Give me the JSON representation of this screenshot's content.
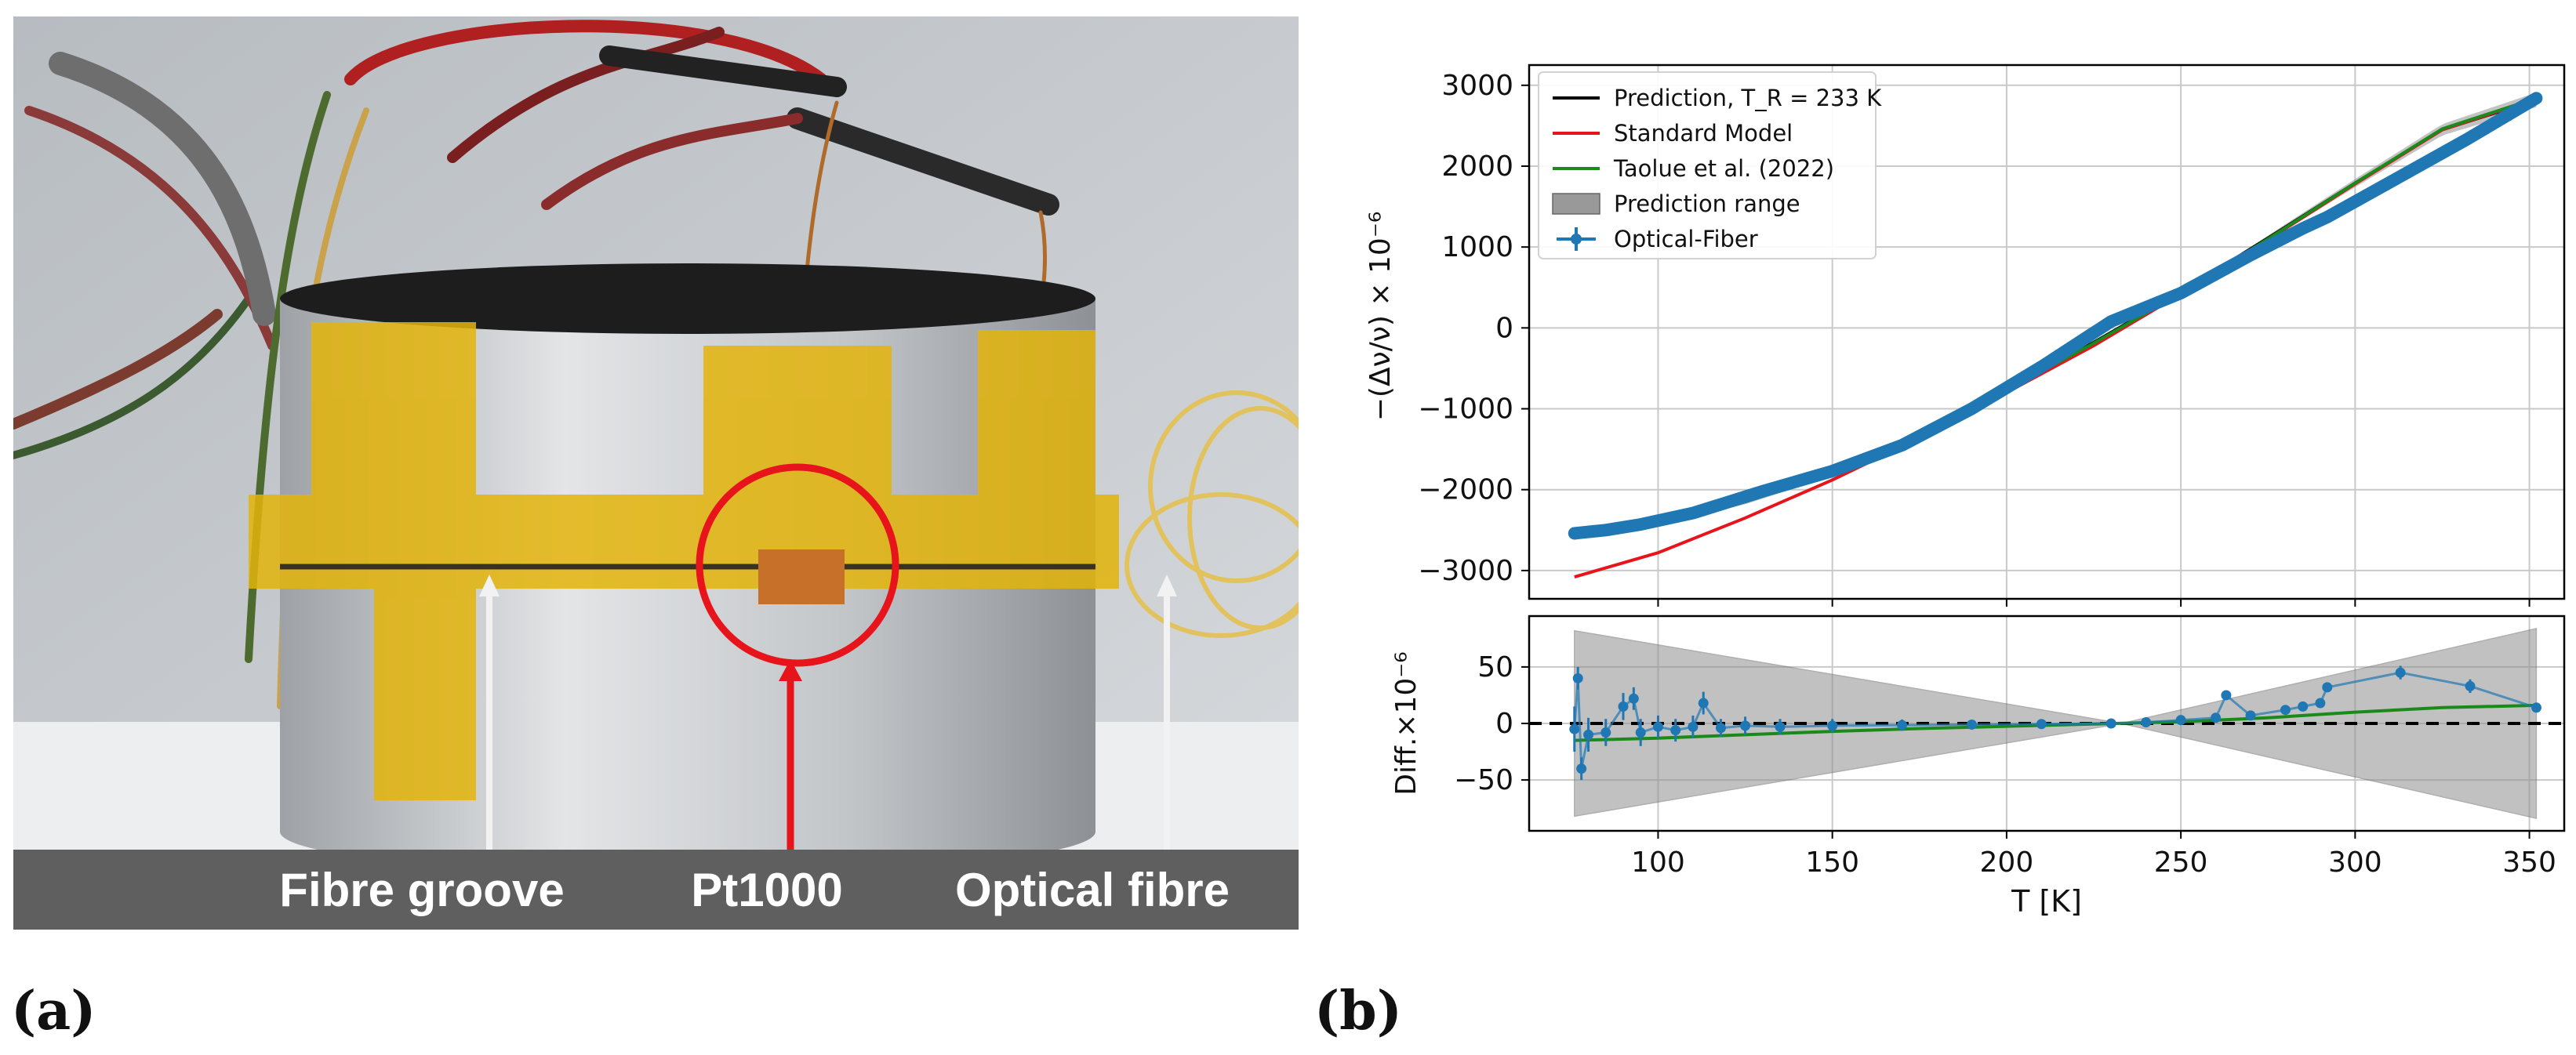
{
  "panels": {
    "a_label": "(a)",
    "b_label": "(b)"
  },
  "photo": {
    "caption_fibre_groove": "Fibre groove",
    "caption_pt1000": "Pt1000",
    "caption_optical_fibre": "Optical fibre",
    "colors": {
      "tape": "#e3b40a",
      "aluminum": "#c9cbcd",
      "circle": "#e8141c",
      "arrow_white": "#f2f2f2",
      "banner": "#5f5f5f"
    }
  },
  "chart_data": [
    {
      "type": "line",
      "title": "",
      "xlabel": "",
      "ylabel": "−(Δν/ν) × 10⁻⁶",
      "xlim": [
        63,
        360
      ],
      "ylim": [
        -3350,
        3250
      ],
      "grid": true,
      "yticks": [
        {
          "value": -3000,
          "label": "−3000"
        },
        {
          "value": -2000,
          "label": "−2000"
        },
        {
          "value": -1000,
          "label": "−1000"
        },
        {
          "value": 0,
          "label": "0"
        },
        {
          "value": 1000,
          "label": "1000"
        },
        {
          "value": 2000,
          "label": "2000"
        },
        {
          "value": 3000,
          "label": "3000"
        }
      ],
      "xticks": [
        100,
        150,
        200,
        250,
        300,
        350
      ],
      "legend_position": "top-left",
      "legend": [
        {
          "name": "Prediction, T_R = 233 K",
          "style": "line",
          "color": "#000000"
        },
        {
          "name": "Standard Model",
          "style": "line",
          "color": "#e8141c"
        },
        {
          "name": "Taolue et al. (2022)",
          "style": "line",
          "color": "#1a8a1a"
        },
        {
          "name": "Prediction range",
          "style": "patch",
          "color": "#999999"
        },
        {
          "name": "Optical-Fiber",
          "style": "errorbar",
          "color": "#1f77b4"
        }
      ],
      "series": [
        {
          "name": "Prediction, T_R = 233 K",
          "color": "#000000",
          "x": [
            76,
            100,
            125,
            150,
            175,
            200,
            225,
            250,
            275,
            300,
            325,
            352
          ],
          "y": [
            -2560,
            -2390,
            -2140,
            -1800,
            -1320,
            -760,
            -180,
            440,
            1110,
            1790,
            2450,
            2820
          ]
        },
        {
          "name": "Standard Model",
          "color": "#e8141c",
          "x": [
            76,
            100,
            125,
            150,
            175,
            200,
            225,
            250,
            275,
            300,
            325,
            352
          ],
          "y": [
            -3080,
            -2780,
            -2350,
            -1880,
            -1360,
            -800,
            -220,
            420,
            1090,
            1780,
            2450,
            2830
          ]
        },
        {
          "name": "Taolue et al. (2022)",
          "color": "#1a8a1a",
          "x": [
            76,
            100,
            125,
            150,
            175,
            200,
            225,
            250,
            275,
            300,
            325,
            352
          ],
          "y": [
            -2570,
            -2400,
            -2150,
            -1810,
            -1330,
            -770,
            -190,
            430,
            1100,
            1790,
            2460,
            2840
          ]
        },
        {
          "name": "Optical-Fiber",
          "color": "#1f77b4",
          "x": [
            76,
            85,
            95,
            110,
            130,
            150,
            170,
            190,
            210,
            230,
            250,
            270,
            285,
            292,
            312,
            332,
            352
          ],
          "y": [
            -2540,
            -2500,
            -2430,
            -2290,
            -2020,
            -1770,
            -1450,
            -1000,
            -480,
            80,
            430,
            900,
            1230,
            1370,
            1850,
            2330,
            2840
          ]
        }
      ],
      "prediction_range": {
        "x": [
          76,
          233,
          352
        ],
        "half_width": [
          60,
          0,
          90
        ]
      }
    },
    {
      "type": "line",
      "title": "",
      "xlabel": "T [K]",
      "ylabel": "Diff.×10⁻⁶",
      "xlim": [
        63,
        360
      ],
      "ylim": [
        -95,
        95
      ],
      "grid": true,
      "yticks": [
        {
          "value": -50,
          "label": "−50"
        },
        {
          "value": 0,
          "label": "0"
        },
        {
          "value": 50,
          "label": "50"
        }
      ],
      "xticks": [
        100,
        150,
        200,
        250,
        300,
        350
      ],
      "reference_line": {
        "y": 0,
        "style": "dashed",
        "color": "#000000"
      },
      "prediction_range": {
        "x": [
          76,
          233,
          352
        ],
        "upper": [
          82,
          0,
          84
        ],
        "lower": [
          -82,
          0,
          -84
        ]
      },
      "series": [
        {
          "name": "Taolue et al. (2022)",
          "color": "#1a8a1a",
          "x": [
            76,
            100,
            125,
            150,
            175,
            200,
            225,
            250,
            275,
            300,
            325,
            352
          ],
          "y": [
            -15,
            -13,
            -10,
            -7,
            -4.5,
            -2.5,
            -0.5,
            1.5,
            5,
            10,
            14,
            16
          ]
        },
        {
          "name": "Optical-Fiber",
          "color": "#1f77b4",
          "x": [
            76,
            77,
            78,
            80,
            85,
            90,
            93,
            95,
            100,
            105,
            110,
            113,
            118,
            125,
            135,
            150,
            170,
            190,
            210,
            230,
            240,
            250,
            260,
            263,
            270,
            280,
            285,
            290,
            292,
            313,
            333,
            352
          ],
          "y": [
            -5,
            40,
            -40,
            -10,
            -8,
            15,
            22,
            -8,
            -3,
            -6,
            -3,
            18,
            -4,
            -2,
            -3,
            -2,
            -1.5,
            -1,
            -0.5,
            0,
            1,
            3,
            5,
            25,
            7,
            12,
            15,
            18,
            32,
            45,
            33,
            14
          ],
          "err": [
            20,
            10,
            10,
            15,
            12,
            12,
            10,
            12,
            10,
            10,
            10,
            10,
            8,
            8,
            7,
            6,
            5,
            4,
            3,
            2,
            2,
            2,
            2,
            1,
            2,
            2,
            2,
            2,
            1,
            6,
            6,
            3
          ]
        }
      ]
    }
  ]
}
